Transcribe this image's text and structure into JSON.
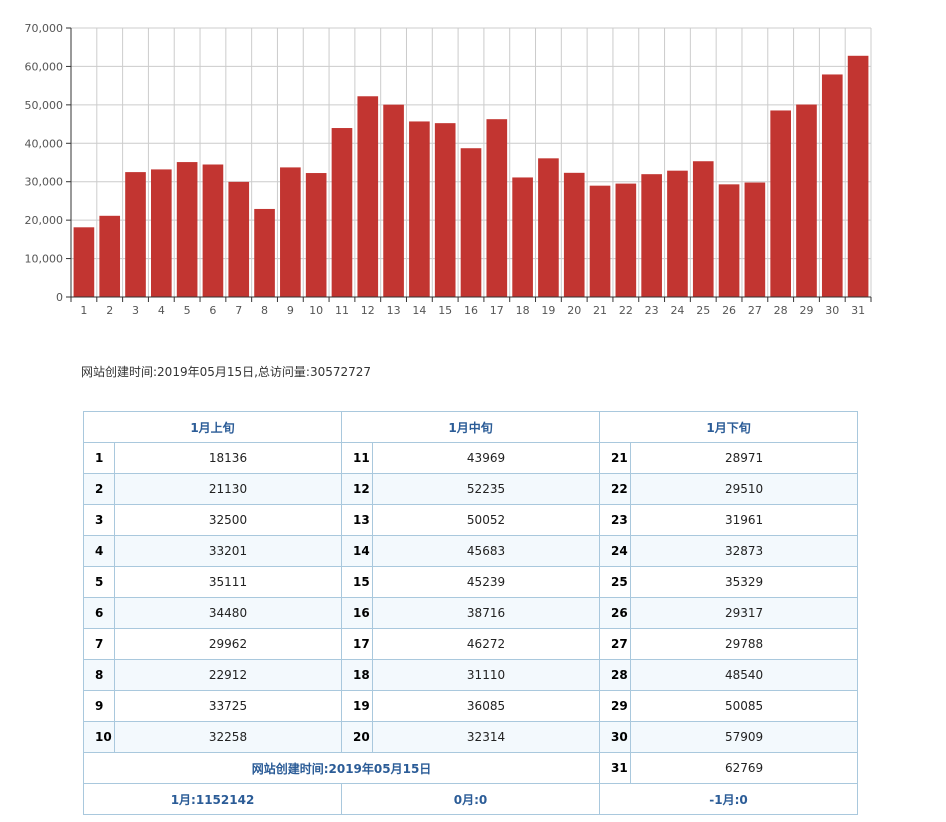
{
  "chart_data": {
    "type": "bar",
    "categories": [
      "1",
      "2",
      "3",
      "4",
      "5",
      "6",
      "7",
      "8",
      "9",
      "10",
      "11",
      "12",
      "13",
      "14",
      "15",
      "16",
      "17",
      "18",
      "19",
      "20",
      "21",
      "22",
      "23",
      "24",
      "25",
      "26",
      "27",
      "28",
      "29",
      "30",
      "31"
    ],
    "values": [
      18136,
      21130,
      32500,
      33201,
      35111,
      34480,
      29962,
      22912,
      33725,
      32258,
      43969,
      52235,
      50052,
      45683,
      45239,
      38716,
      46272,
      31110,
      36085,
      32314,
      28971,
      29510,
      31961,
      32873,
      35329,
      29317,
      29788,
      48540,
      50085,
      57909,
      62769
    ],
    "y_ticks": [
      "0",
      "10,000",
      "20,000",
      "30,000",
      "40,000",
      "50,000",
      "60,000",
      "70,000"
    ],
    "ylim": [
      0,
      70000
    ],
    "grid": true,
    "bar_color": "#c23531",
    "title": "",
    "xlabel": "",
    "ylabel": ""
  },
  "summary_text": "网站创建时间:2019年05月15日,总访问量:30572727",
  "table": {
    "headers": [
      "1月上旬",
      "1月中旬",
      "1月下旬"
    ],
    "rows": [
      [
        "1",
        "18136",
        "11",
        "43969",
        "21",
        "28971"
      ],
      [
        "2",
        "21130",
        "12",
        "52235",
        "22",
        "29510"
      ],
      [
        "3",
        "32500",
        "13",
        "50052",
        "23",
        "31961"
      ],
      [
        "4",
        "33201",
        "14",
        "45683",
        "24",
        "32873"
      ],
      [
        "5",
        "35111",
        "15",
        "45239",
        "25",
        "35329"
      ],
      [
        "6",
        "34480",
        "16",
        "38716",
        "26",
        "29317"
      ],
      [
        "7",
        "29962",
        "17",
        "46272",
        "27",
        "29788"
      ],
      [
        "8",
        "22912",
        "18",
        "31110",
        "28",
        "48540"
      ],
      [
        "9",
        "33725",
        "19",
        "36085",
        "29",
        "50085"
      ],
      [
        "10",
        "32258",
        "20",
        "32314",
        "30",
        "57909"
      ]
    ],
    "created_label": "网站创建时间:2019年05月15日",
    "last_day": "31",
    "last_value": "62769",
    "footer": [
      "1月:1152142",
      "0月:0",
      "-1月:0"
    ]
  }
}
